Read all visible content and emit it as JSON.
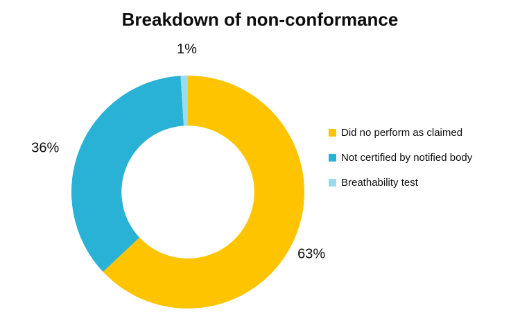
{
  "page": {
    "background": "#FFFFFF"
  },
  "chart_data": {
    "type": "pie",
    "subtype": "donut",
    "title": "Breakdown of non-conformance",
    "categories": [
      "Did no perform as claimed",
      "Not certified by notified body",
      "Breathability test"
    ],
    "values": [
      63,
      36,
      1
    ],
    "unit": "%",
    "data_labels": [
      "63%",
      "36%",
      "1%"
    ],
    "colors": [
      "#FFC400",
      "#29B1D6",
      "#9BDCEC"
    ],
    "title_color": "#0D0D0D",
    "label_color": "#0D0D0D",
    "legend_position": "right",
    "start_angle_deg": 0,
    "direction": "clockwise",
    "hole_ratio": 0.57,
    "legend": [
      {
        "label": "Did no perform as claimed",
        "color": "#FFC400"
      },
      {
        "label": "Not certified by notified body",
        "color": "#29B1D6"
      },
      {
        "label": "Breathability test",
        "color": "#9BDCEC"
      }
    ]
  }
}
